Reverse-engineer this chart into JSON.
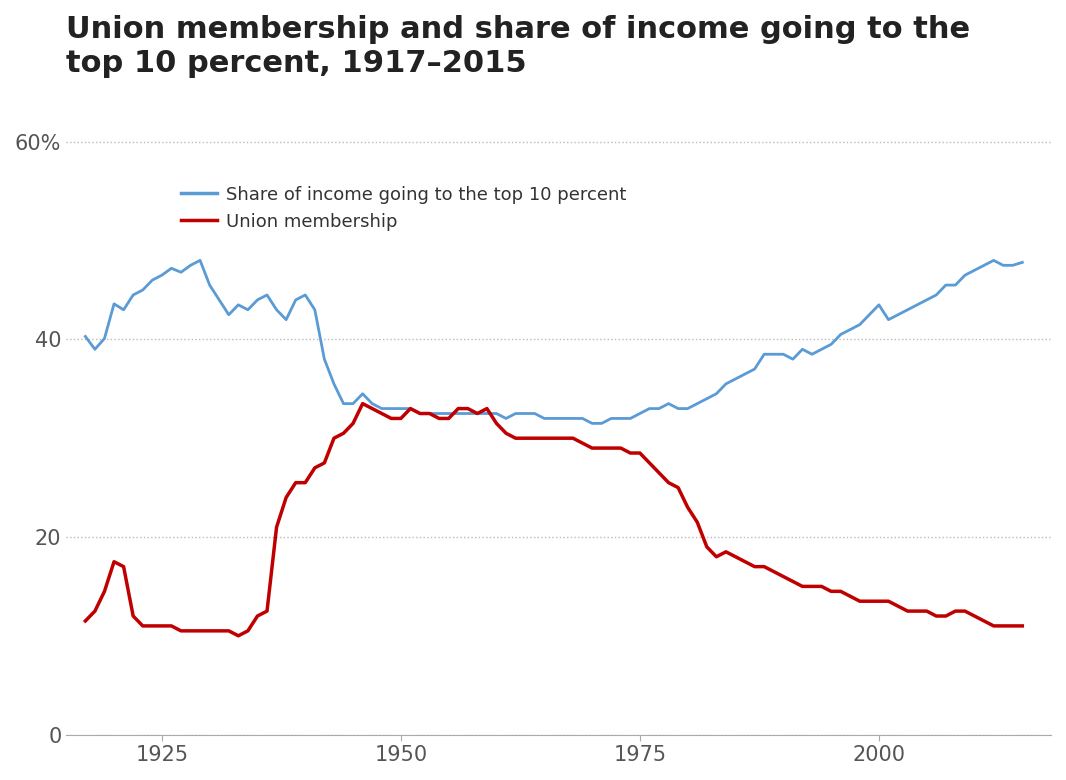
{
  "title": "Union membership and share of income going to the\ntop 10 percent, 1917–2015",
  "title_fontsize": 22,
  "background_color": "#ffffff",
  "grid_color": "#bbbbbb",
  "income_color": "#5b9bd5",
  "union_color": "#c00000",
  "income_label": "Share of income going to the top 10 percent",
  "union_label": "Union membership",
  "ylim": [
    0,
    65
  ],
  "yticks": [
    0,
    20,
    40,
    60
  ],
  "ytick_labels": [
    "0",
    "20",
    "40",
    "60%"
  ],
  "xlim": [
    1915,
    2018
  ],
  "xticks": [
    1925,
    1950,
    1975,
    2000
  ],
  "income_data": [
    [
      1917,
      40.3
    ],
    [
      1918,
      39.0
    ],
    [
      1919,
      40.1
    ],
    [
      1920,
      43.6
    ],
    [
      1921,
      43.0
    ],
    [
      1922,
      44.5
    ],
    [
      1923,
      45.0
    ],
    [
      1924,
      46.0
    ],
    [
      1925,
      46.5
    ],
    [
      1926,
      47.2
    ],
    [
      1927,
      46.8
    ],
    [
      1928,
      47.5
    ],
    [
      1929,
      48.0
    ],
    [
      1930,
      45.5
    ],
    [
      1931,
      44.0
    ],
    [
      1932,
      42.5
    ],
    [
      1933,
      43.5
    ],
    [
      1934,
      43.0
    ],
    [
      1935,
      44.0
    ],
    [
      1936,
      44.5
    ],
    [
      1937,
      43.0
    ],
    [
      1938,
      42.0
    ],
    [
      1939,
      44.0
    ],
    [
      1940,
      44.5
    ],
    [
      1941,
      43.0
    ],
    [
      1942,
      38.0
    ],
    [
      1943,
      35.5
    ],
    [
      1944,
      33.5
    ],
    [
      1945,
      33.5
    ],
    [
      1946,
      34.5
    ],
    [
      1947,
      33.5
    ],
    [
      1948,
      33.0
    ],
    [
      1949,
      33.0
    ],
    [
      1950,
      33.0
    ],
    [
      1951,
      33.0
    ],
    [
      1952,
      32.5
    ],
    [
      1953,
      32.5
    ],
    [
      1954,
      32.5
    ],
    [
      1955,
      32.5
    ],
    [
      1956,
      32.5
    ],
    [
      1957,
      32.5
    ],
    [
      1958,
      32.5
    ],
    [
      1959,
      32.5
    ],
    [
      1960,
      32.5
    ],
    [
      1961,
      32.0
    ],
    [
      1962,
      32.5
    ],
    [
      1963,
      32.5
    ],
    [
      1964,
      32.5
    ],
    [
      1965,
      32.0
    ],
    [
      1966,
      32.0
    ],
    [
      1967,
      32.0
    ],
    [
      1968,
      32.0
    ],
    [
      1969,
      32.0
    ],
    [
      1970,
      31.5
    ],
    [
      1971,
      31.5
    ],
    [
      1972,
      32.0
    ],
    [
      1973,
      32.0
    ],
    [
      1974,
      32.0
    ],
    [
      1975,
      32.5
    ],
    [
      1976,
      33.0
    ],
    [
      1977,
      33.0
    ],
    [
      1978,
      33.5
    ],
    [
      1979,
      33.0
    ],
    [
      1980,
      33.0
    ],
    [
      1981,
      33.5
    ],
    [
      1982,
      34.0
    ],
    [
      1983,
      34.5
    ],
    [
      1984,
      35.5
    ],
    [
      1985,
      36.0
    ],
    [
      1986,
      36.5
    ],
    [
      1987,
      37.0
    ],
    [
      1988,
      38.5
    ],
    [
      1989,
      38.5
    ],
    [
      1990,
      38.5
    ],
    [
      1991,
      38.0
    ],
    [
      1992,
      39.0
    ],
    [
      1993,
      38.5
    ],
    [
      1994,
      39.0
    ],
    [
      1995,
      39.5
    ],
    [
      1996,
      40.5
    ],
    [
      1997,
      41.0
    ],
    [
      1998,
      41.5
    ],
    [
      1999,
      42.5
    ],
    [
      2000,
      43.5
    ],
    [
      2001,
      42.0
    ],
    [
      2002,
      42.5
    ],
    [
      2003,
      43.0
    ],
    [
      2004,
      43.5
    ],
    [
      2005,
      44.0
    ],
    [
      2006,
      44.5
    ],
    [
      2007,
      45.5
    ],
    [
      2008,
      45.5
    ],
    [
      2009,
      46.5
    ],
    [
      2010,
      47.0
    ],
    [
      2011,
      47.5
    ],
    [
      2012,
      48.0
    ],
    [
      2013,
      47.5
    ],
    [
      2014,
      47.5
    ],
    [
      2015,
      47.8
    ]
  ],
  "union_data": [
    [
      1917,
      11.5
    ],
    [
      1918,
      12.5
    ],
    [
      1919,
      14.5
    ],
    [
      1920,
      17.5
    ],
    [
      1921,
      17.0
    ],
    [
      1922,
      12.0
    ],
    [
      1923,
      11.0
    ],
    [
      1924,
      11.0
    ],
    [
      1925,
      11.0
    ],
    [
      1926,
      11.0
    ],
    [
      1927,
      10.5
    ],
    [
      1928,
      10.5
    ],
    [
      1929,
      10.5
    ],
    [
      1930,
      10.5
    ],
    [
      1931,
      10.5
    ],
    [
      1932,
      10.5
    ],
    [
      1933,
      10.0
    ],
    [
      1934,
      10.5
    ],
    [
      1935,
      12.0
    ],
    [
      1936,
      12.5
    ],
    [
      1937,
      21.0
    ],
    [
      1938,
      24.0
    ],
    [
      1939,
      25.5
    ],
    [
      1940,
      25.5
    ],
    [
      1941,
      27.0
    ],
    [
      1942,
      27.5
    ],
    [
      1943,
      30.0
    ],
    [
      1944,
      30.5
    ],
    [
      1945,
      31.5
    ],
    [
      1946,
      33.5
    ],
    [
      1947,
      33.0
    ],
    [
      1948,
      32.5
    ],
    [
      1949,
      32.0
    ],
    [
      1950,
      32.0
    ],
    [
      1951,
      33.0
    ],
    [
      1952,
      32.5
    ],
    [
      1953,
      32.5
    ],
    [
      1954,
      32.0
    ],
    [
      1955,
      32.0
    ],
    [
      1956,
      33.0
    ],
    [
      1957,
      33.0
    ],
    [
      1958,
      32.5
    ],
    [
      1959,
      33.0
    ],
    [
      1960,
      31.5
    ],
    [
      1961,
      30.5
    ],
    [
      1962,
      30.0
    ],
    [
      1963,
      30.0
    ],
    [
      1964,
      30.0
    ],
    [
      1965,
      30.0
    ],
    [
      1966,
      30.0
    ],
    [
      1967,
      30.0
    ],
    [
      1968,
      30.0
    ],
    [
      1969,
      29.5
    ],
    [
      1970,
      29.0
    ],
    [
      1971,
      29.0
    ],
    [
      1972,
      29.0
    ],
    [
      1973,
      29.0
    ],
    [
      1974,
      28.5
    ],
    [
      1975,
      28.5
    ],
    [
      1976,
      27.5
    ],
    [
      1977,
      26.5
    ],
    [
      1978,
      25.5
    ],
    [
      1979,
      25.0
    ],
    [
      1980,
      23.0
    ],
    [
      1981,
      21.5
    ],
    [
      1982,
      19.0
    ],
    [
      1983,
      18.0
    ],
    [
      1984,
      18.5
    ],
    [
      1985,
      18.0
    ],
    [
      1986,
      17.5
    ],
    [
      1987,
      17.0
    ],
    [
      1988,
      17.0
    ],
    [
      1989,
      16.5
    ],
    [
      1990,
      16.0
    ],
    [
      1991,
      15.5
    ],
    [
      1992,
      15.0
    ],
    [
      1993,
      15.0
    ],
    [
      1994,
      15.0
    ],
    [
      1995,
      14.5
    ],
    [
      1996,
      14.5
    ],
    [
      1997,
      14.0
    ],
    [
      1998,
      13.5
    ],
    [
      1999,
      13.5
    ],
    [
      2000,
      13.5
    ],
    [
      2001,
      13.5
    ],
    [
      2002,
      13.0
    ],
    [
      2003,
      12.5
    ],
    [
      2004,
      12.5
    ],
    [
      2005,
      12.5
    ],
    [
      2006,
      12.0
    ],
    [
      2007,
      12.0
    ],
    [
      2008,
      12.5
    ],
    [
      2009,
      12.5
    ],
    [
      2010,
      12.0
    ],
    [
      2011,
      11.5
    ],
    [
      2012,
      11.0
    ],
    [
      2013,
      11.0
    ],
    [
      2014,
      11.0
    ],
    [
      2015,
      11.0
    ]
  ]
}
